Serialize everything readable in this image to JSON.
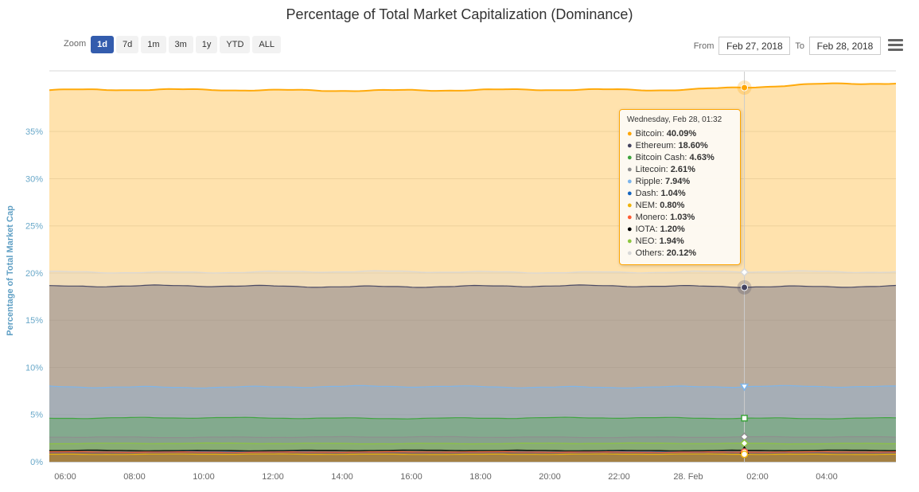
{
  "page": {
    "title": "Percentage of Total Market Capitalization (Dominance)"
  },
  "toolbar": {
    "zoom_label": "Zoom",
    "zoom_buttons": [
      "1d",
      "7d",
      "1m",
      "3m",
      "1y",
      "YTD",
      "ALL"
    ],
    "zoom_selected": "1d",
    "from_label": "From",
    "from_value": "Feb 27, 2018",
    "to_label": "To",
    "to_value": "Feb 28, 2018"
  },
  "chart_data": {
    "type": "area",
    "title": "Percentage of Total Market Capitalization (Dominance)",
    "ylabel": "Percentage of Total Market Cap",
    "xlabel": "",
    "ylim": [
      0,
      40.5
    ],
    "yticks": [
      "0%",
      "5%",
      "10%",
      "15%",
      "20%",
      "25%",
      "30%",
      "35%"
    ],
    "xticks": [
      "06:00",
      "08:00",
      "10:00",
      "12:00",
      "14:00",
      "16:00",
      "18:00",
      "20:00",
      "22:00",
      "28. Feb",
      "02:00",
      "04:00"
    ],
    "grid": "horizontal",
    "legend_position": "none",
    "overlap_fill_opacity": 0.32,
    "hover_x_fraction": 0.821,
    "series": [
      {
        "name": "Bitcoin",
        "value": 40.09,
        "color": "#ffa500",
        "marker": "circle",
        "filled": true,
        "trend": 0.7
      },
      {
        "name": "Ethereum",
        "value": 18.6,
        "color": "#434360",
        "marker": "circle",
        "filled": true,
        "trend": 0
      },
      {
        "name": "Bitcoin Cash",
        "value": 4.63,
        "color": "#3ca33c",
        "marker": "square",
        "filled": false,
        "trend": 0
      },
      {
        "name": "Litecoin",
        "value": 2.61,
        "color": "#8e8e8e",
        "marker": "diamond",
        "filled": false,
        "trend": 0
      },
      {
        "name": "Ripple",
        "value": 7.94,
        "color": "#7cb5ec",
        "marker": "triangle-down",
        "filled": false,
        "trend": 0
      },
      {
        "name": "Dash",
        "value": 1.04,
        "color": "#1565c0",
        "marker": "circle",
        "filled": false,
        "trend": 0
      },
      {
        "name": "NEM",
        "value": 0.8,
        "color": "#eeb30c",
        "marker": "circle",
        "filled": false,
        "trend": 0
      },
      {
        "name": "Monero",
        "value": 1.03,
        "color": "#ff5b33",
        "marker": "circle",
        "filled": false,
        "trend": 0
      },
      {
        "name": "IOTA",
        "value": 1.2,
        "color": "#000000",
        "marker": "triangle-up",
        "filled": false,
        "trend": 0
      },
      {
        "name": "NEO",
        "value": 1.94,
        "color": "#8cc63f",
        "marker": "diamond",
        "filled": false,
        "trend": 0
      },
      {
        "name": "Others",
        "value": 20.12,
        "color": "#d8d8d8",
        "marker": "diamond",
        "filled": false,
        "trend": 0
      }
    ],
    "tooltip": {
      "header": "Wednesday, Feb 28, 01:32",
      "value_suffix": "%"
    }
  }
}
